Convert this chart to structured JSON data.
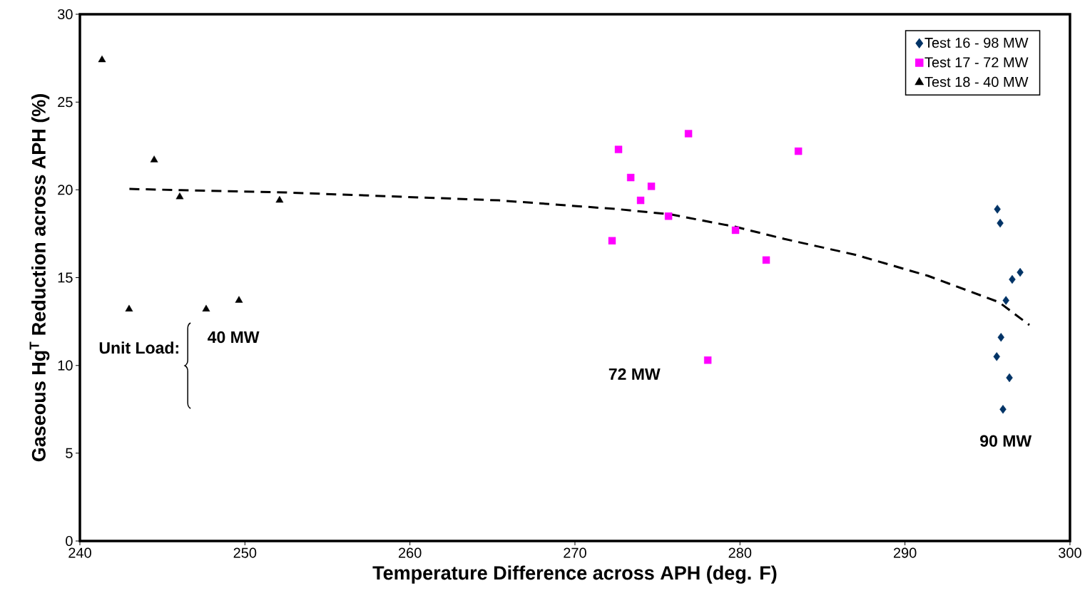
{
  "chart_data": {
    "type": "scatter",
    "xlabel": "Temperature Difference across APH (deg. F)",
    "ylabel": "Gaseous Hg$^{T}$ Reduction across APH (%)",
    "xlim": [
      240,
      300
    ],
    "xticks": [
      240,
      250,
      260,
      270,
      280,
      290,
      300
    ],
    "ylim": [
      0,
      30
    ],
    "yticks": [
      0,
      5,
      10,
      15,
      20,
      25,
      30
    ],
    "grid": false,
    "legend": "top right",
    "series": [
      {
        "name": "Test 16 - 98 MW",
        "color": "#003366",
        "marker": "diamond",
        "x": [
          295.6,
          295.77,
          296.98,
          296.5,
          296.12,
          295.82,
          295.56,
          296.33,
          295.94
        ],
        "values": [
          18.9,
          18.1,
          15.3,
          14.9,
          13.7,
          11.6,
          10.5,
          9.3,
          7.5
        ]
      },
      {
        "name": "Test 17 - 72 MW",
        "color": "#ff00ff",
        "marker": "square",
        "x": [
          272.64,
          276.88,
          283.54,
          273.38,
          274.63,
          273.98,
          275.67,
          272.25,
          279.73,
          281.59,
          278.05
        ],
        "values": [
          22.3,
          23.2,
          22.2,
          20.7,
          20.2,
          19.4,
          18.5,
          17.1,
          17.7,
          16.0,
          10.3
        ]
      },
      {
        "name": "Test 18 - 40 MW",
        "color": "#000000",
        "marker": "triangle",
        "x": [
          241.34,
          244.5,
          246.05,
          252.1,
          242.98,
          247.65,
          249.64
        ],
        "values": [
          27.4,
          21.7,
          19.6,
          19.4,
          13.2,
          13.2,
          13.7
        ]
      },
      {
        "type": "line",
        "color": "#000000",
        "marker": "none",
        "line_style": "dashed",
        "x": [
          243,
          252.45,
          265.4,
          272.6,
          275.8,
          279.7,
          282.7,
          287,
          291.4,
          295.7,
          297.54
        ],
        "values": [
          20.05,
          19.85,
          19.4,
          18.9,
          18.6,
          17.9,
          17.2,
          16.3,
          15.1,
          13.6,
          12.3
        ]
      }
    ],
    "annotations": [
      "Unit Load:",
      "40 MW",
      "72 MW",
      "90 MW"
    ]
  }
}
